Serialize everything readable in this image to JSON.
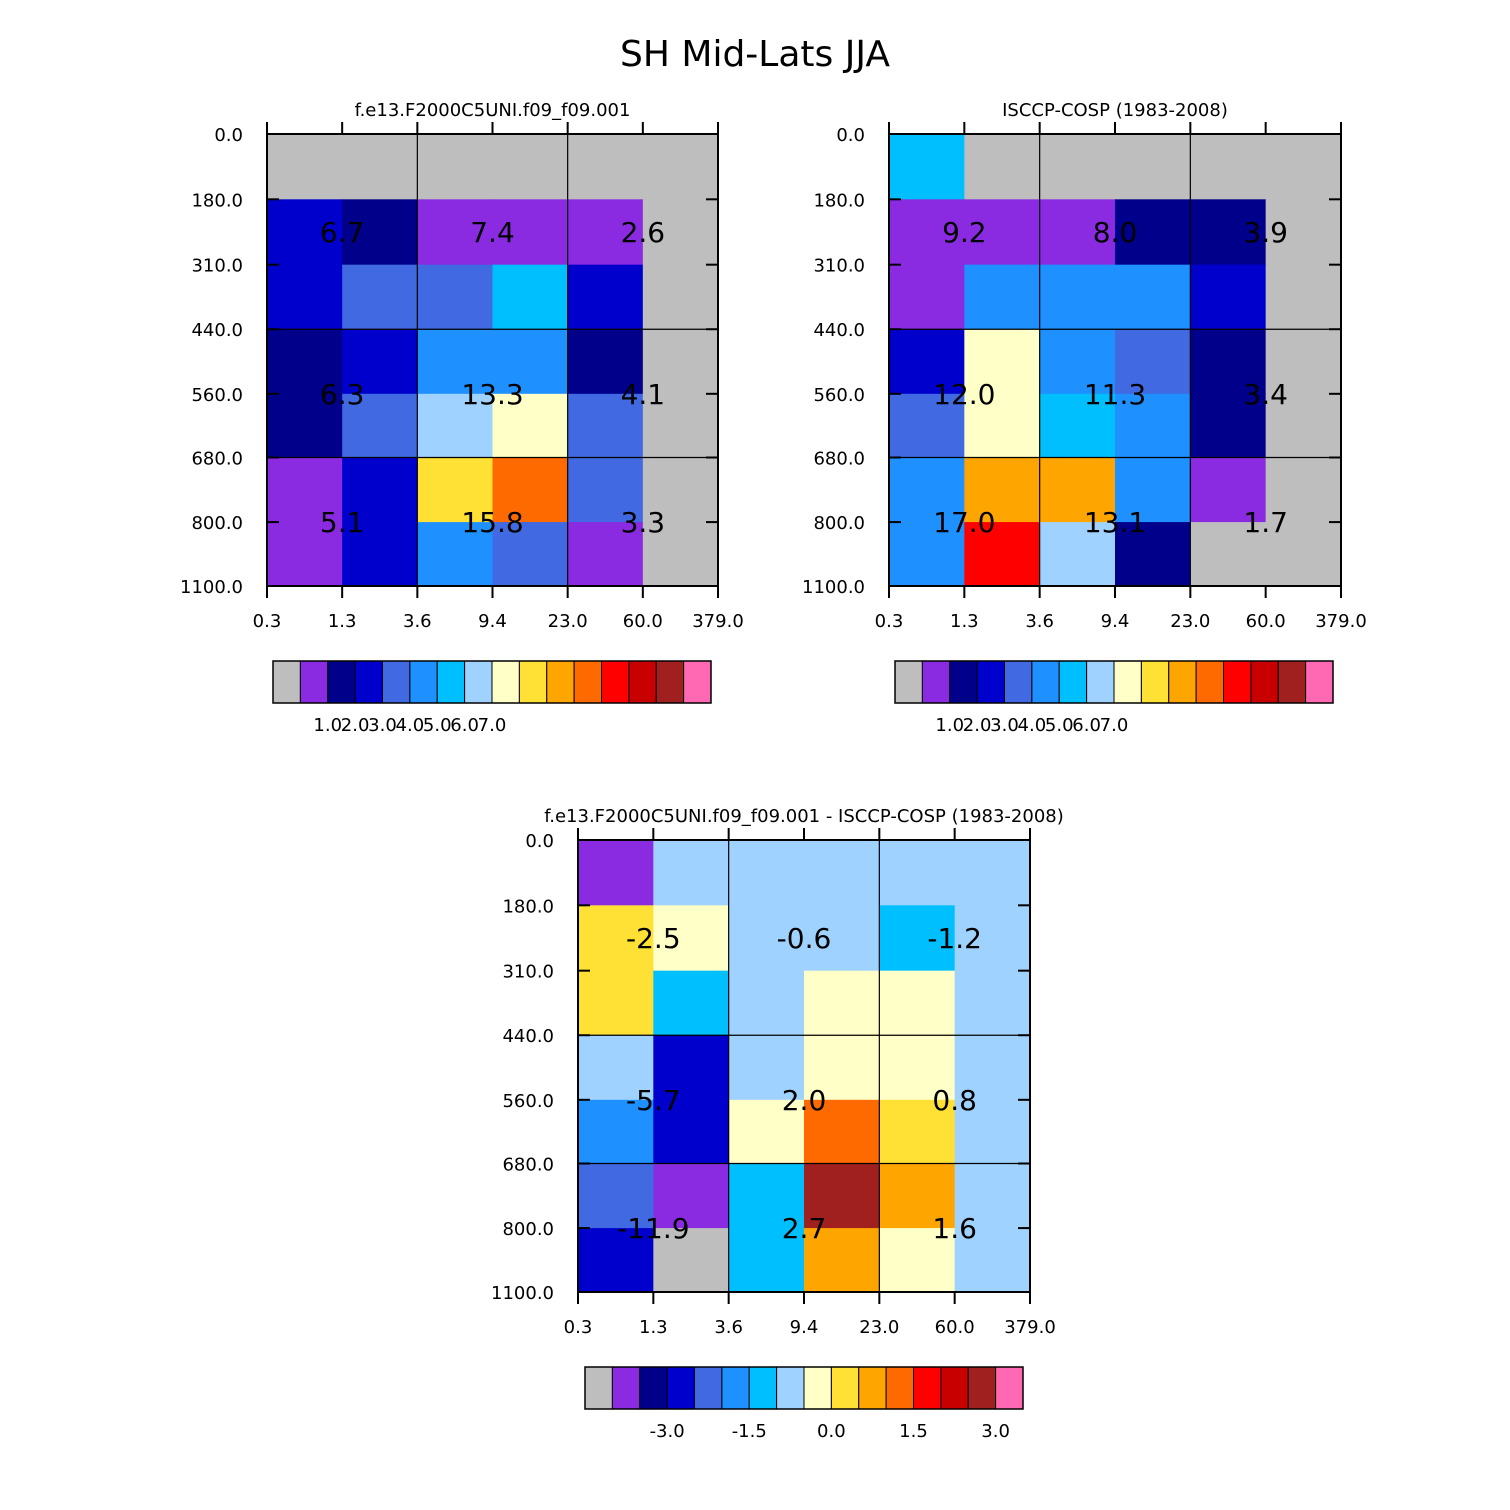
{
  "figure_title": "SH Mid-Lats JJA",
  "chart_data": [
    {
      "type": "heatmap",
      "title": "f.e13.F2000C5UNI.f09_f09.001",
      "x_tick_labels": [
        "0.3",
        "1.3",
        "3.6",
        "9.4",
        "23.0",
        "60.0",
        "379.0"
      ],
      "y_tick_labels": [
        "0.0",
        "180.0",
        "310.0",
        "440.0",
        "560.0",
        "680.0",
        "800.0",
        "1100.0"
      ],
      "cells": [
        [
          "gray",
          "gray",
          "gray",
          "gray",
          "gray",
          "gray"
        ],
        [
          "mediumblue",
          "navy",
          "blueviolet",
          "blueviolet",
          "blueviolet",
          "gray"
        ],
        [
          "mediumblue",
          "royalblue",
          "royalblue",
          "deepskyblue",
          "mediumblue",
          "gray"
        ],
        [
          "navy",
          "mediumblue",
          "dodgerblue",
          "dodgerblue",
          "navy",
          "gray"
        ],
        [
          "navy",
          "royalblue",
          "lightskyblue",
          "lightyellow",
          "royalblue",
          "gray"
        ],
        [
          "blueviolet",
          "mediumblue",
          "gold",
          "darkorange",
          "royalblue",
          "gray"
        ],
        [
          "blueviolet",
          "mediumblue",
          "dodgerblue",
          "royalblue",
          "blueviolet",
          "gray"
        ]
      ],
      "block_values": [
        [
          "6.7",
          "7.4",
          "2.6"
        ],
        [
          "6.3",
          "13.3",
          "4.1"
        ],
        [
          "5.1",
          "15.8",
          "3.3"
        ]
      ],
      "colorbar": {
        "colors": [
          "#bebebe",
          "#8a2be2",
          "#00008b",
          "#0000cd",
          "#4169e1",
          "#1e90ff",
          "#00bfff",
          "#a0d2ff",
          "#ffffc8",
          "#ffe135",
          "#ffa500",
          "#ff6a00",
          "#ff0000",
          "#c80000",
          "#a02020",
          "#ff69b4"
        ],
        "tick_labels": [
          "1.0",
          "2.0",
          "3.0",
          "4.0",
          "5.0",
          "6.0",
          "7.0"
        ]
      }
    },
    {
      "type": "heatmap",
      "title": "ISCCP-COSP (1983-2008)",
      "x_tick_labels": [
        "0.3",
        "1.3",
        "3.6",
        "9.4",
        "23.0",
        "60.0",
        "379.0"
      ],
      "y_tick_labels": [
        "0.0",
        "180.0",
        "310.0",
        "440.0",
        "560.0",
        "680.0",
        "800.0",
        "1100.0"
      ],
      "cells": [
        [
          "deepskyblue",
          "gray",
          "gray",
          "gray",
          "gray",
          "gray"
        ],
        [
          "blueviolet",
          "blueviolet",
          "blueviolet",
          "navy",
          "navy",
          "gray"
        ],
        [
          "blueviolet",
          "dodgerblue",
          "dodgerblue",
          "dodgerblue",
          "mediumblue",
          "gray"
        ],
        [
          "mediumblue",
          "lightyellow",
          "dodgerblue",
          "royalblue",
          "navy",
          "gray"
        ],
        [
          "royalblue",
          "lightyellow",
          "deepskyblue",
          "dodgerblue",
          "navy",
          "gray"
        ],
        [
          "dodgerblue",
          "orange",
          "orange",
          "dodgerblue",
          "blueviolet",
          "gray"
        ],
        [
          "dodgerblue",
          "red",
          "lightskyblue",
          "navy",
          "gray",
          "gray"
        ]
      ],
      "block_values": [
        [
          "9.2",
          "8.0",
          "3.9"
        ],
        [
          "12.0",
          "11.3",
          "3.4"
        ],
        [
          "17.0",
          "13.1",
          "1.7"
        ]
      ],
      "colorbar": {
        "colors": [
          "#bebebe",
          "#8a2be2",
          "#00008b",
          "#0000cd",
          "#4169e1",
          "#1e90ff",
          "#00bfff",
          "#a0d2ff",
          "#ffffc8",
          "#ffe135",
          "#ffa500",
          "#ff6a00",
          "#ff0000",
          "#c80000",
          "#a02020",
          "#ff69b4"
        ],
        "tick_labels": [
          "1.0",
          "2.0",
          "3.0",
          "4.0",
          "5.0",
          "6.0",
          "7.0"
        ]
      }
    },
    {
      "type": "heatmap",
      "title": "f.e13.F2000C5UNI.f09_f09.001 - ISCCP-COSP (1983-2008)",
      "x_tick_labels": [
        "0.3",
        "1.3",
        "3.6",
        "9.4",
        "23.0",
        "60.0",
        "379.0"
      ],
      "y_tick_labels": [
        "0.0",
        "180.0",
        "310.0",
        "440.0",
        "560.0",
        "680.0",
        "800.0",
        "1100.0"
      ],
      "cells": [
        [
          "blueviolet",
          "lightskyblue",
          "lightskyblue",
          "lightskyblue",
          "lightskyblue",
          "lightskyblue"
        ],
        [
          "gold",
          "lightyellow",
          "lightskyblue",
          "lightskyblue",
          "deepskyblue",
          "lightskyblue"
        ],
        [
          "gold",
          "deepskyblue",
          "lightskyblue",
          "lightyellow",
          "lightyellow",
          "lightskyblue"
        ],
        [
          "lightskyblue",
          "mediumblue",
          "lightskyblue",
          "lightyellow",
          "lightyellow",
          "lightskyblue"
        ],
        [
          "dodgerblue",
          "mediumblue",
          "lightyellow",
          "darkorange",
          "gold",
          "lightskyblue"
        ],
        [
          "royalblue",
          "blueviolet",
          "deepskyblue",
          "brown",
          "orange",
          "lightskyblue"
        ],
        [
          "mediumblue",
          "gray",
          "deepskyblue",
          "orange",
          "lightyellow",
          "lightskyblue"
        ]
      ],
      "block_values": [
        [
          "-2.5",
          "-0.6",
          "-1.2"
        ],
        [
          "-5.7",
          "2.0",
          "0.8"
        ],
        [
          "-11.9",
          "2.7",
          "1.6"
        ]
      ],
      "colorbar": {
        "colors": [
          "#bebebe",
          "#8a2be2",
          "#00008b",
          "#0000cd",
          "#4169e1",
          "#1e90ff",
          "#00bfff",
          "#a0d2ff",
          "#ffffc8",
          "#ffe135",
          "#ffa500",
          "#ff6a00",
          "#ff0000",
          "#c80000",
          "#a02020",
          "#ff69b4"
        ],
        "tick_labels": [
          "-3.0",
          "-1.5",
          "0.0",
          "1.5",
          "3.0"
        ]
      }
    }
  ],
  "color_map": {
    "gray": "#bebebe",
    "blueviolet": "#8a2be2",
    "navy": "#00008b",
    "mediumblue": "#0000cd",
    "royalblue": "#4169e1",
    "dodgerblue": "#1e90ff",
    "deepskyblue": "#00bfff",
    "lightskyblue": "#a0d2ff",
    "lightyellow": "#ffffc8",
    "gold": "#ffe135",
    "orange": "#ffa500",
    "darkorange": "#ff6a00",
    "red": "#ff0000",
    "brown": "#a02020"
  }
}
